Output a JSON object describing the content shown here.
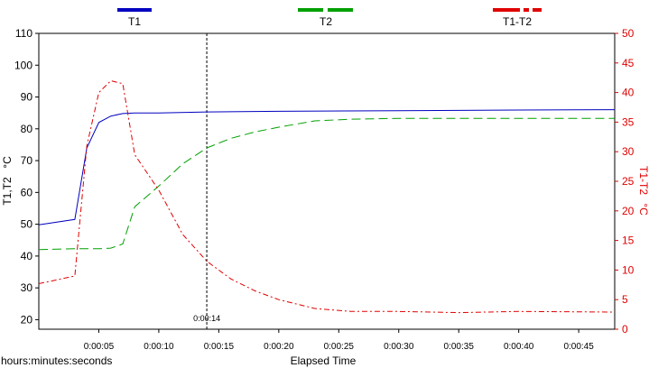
{
  "colors": {
    "t1": "#0000c0",
    "t2": "#00a000",
    "diff": "#e00000",
    "axis": "#000000"
  },
  "chart_data": {
    "type": "line",
    "title": "",
    "xlabel": "Elapsed Time",
    "xunits_label": "hours:minutes:seconds",
    "ylabel_left": "T1,T2",
    "ylabel_left_unit": "°C",
    "ylabel_right": "T1-T2",
    "ylabel_right_unit": "°C",
    "xlim": [
      0,
      48
    ],
    "ylim_left": [
      17,
      110
    ],
    "ylim_right": [
      0,
      50
    ],
    "left_ticks": [
      20,
      30,
      40,
      50,
      60,
      70,
      80,
      90,
      100,
      110
    ],
    "right_ticks": [
      0,
      5,
      10,
      15,
      20,
      25,
      30,
      35,
      40,
      45,
      50
    ],
    "x_ticks": [
      {
        "value": 5,
        "label": "0:00:05"
      },
      {
        "value": 10,
        "label": "0:00:10"
      },
      {
        "value": 15,
        "label": "0:00:15"
      },
      {
        "value": 20,
        "label": "0:00:20"
      },
      {
        "value": 25,
        "label": "0:00:25"
      },
      {
        "value": 30,
        "label": "0:00:30"
      },
      {
        "value": 35,
        "label": "0:00:35"
      },
      {
        "value": 40,
        "label": "0:00:40"
      },
      {
        "value": 45,
        "label": "0:00:45"
      }
    ],
    "cursor": {
      "x": 14,
      "label": "0:00:14"
    },
    "legend": {
      "placement": "top"
    },
    "series": [
      {
        "name": "T1",
        "axis": "left",
        "x": [
          0,
          3,
          4,
          5,
          6,
          7,
          8,
          10,
          14,
          20,
          30,
          40,
          48
        ],
        "y": [
          49.8,
          51.5,
          74,
          82,
          84,
          84.8,
          85,
          85,
          85.3,
          85.5,
          85.7,
          85.9,
          86
        ]
      },
      {
        "name": "T2",
        "axis": "left",
        "x": [
          0,
          3,
          5,
          6,
          7,
          8,
          10,
          12,
          14,
          16,
          18,
          20,
          23,
          26,
          30,
          35,
          40,
          48
        ],
        "y": [
          42,
          42.3,
          42.3,
          42.5,
          43.8,
          55.5,
          62,
          69,
          74,
          77,
          79,
          80.5,
          82.5,
          83,
          83.3,
          83.3,
          83.3,
          83.3
        ]
      },
      {
        "name": "T1-T2",
        "axis": "right",
        "x": [
          0,
          3,
          4,
          5,
          6,
          7,
          8,
          10,
          12,
          14,
          16,
          18,
          20,
          23,
          26,
          30,
          35,
          40,
          48
        ],
        "y": [
          7.7,
          9,
          31,
          40,
          42,
          41.5,
          29.5,
          23.5,
          16,
          11.5,
          8.5,
          6.5,
          5,
          3.5,
          3,
          3,
          2.8,
          3,
          2.9
        ]
      }
    ]
  }
}
